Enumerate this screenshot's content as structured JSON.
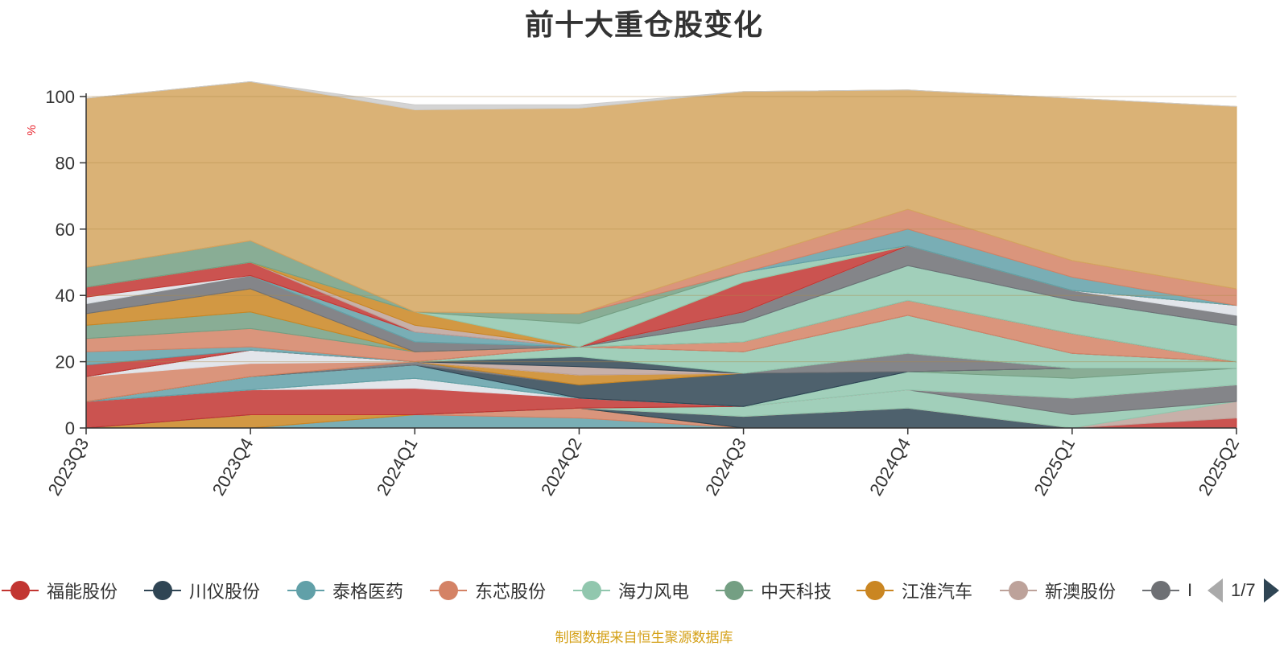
{
  "title": "前十大重仓股变化",
  "footer": "制图数据来自恒生聚源数据库",
  "pager": {
    "text": "1/7"
  },
  "legend": [
    {
      "name": "福能股份",
      "color": "#c23531"
    },
    {
      "name": "川仪股份",
      "color": "#2f4554"
    },
    {
      "name": "泰格医药",
      "color": "#61a0a8"
    },
    {
      "name": "东芯股份",
      "color": "#d48265"
    },
    {
      "name": "海力风电",
      "color": "#91c7ae"
    },
    {
      "name": "中天科技",
      "color": "#749f83"
    },
    {
      "name": "江淮汽车",
      "color": "#ca8622"
    },
    {
      "name": "新澳股份",
      "color": "#bda29a"
    },
    {
      "name": "I",
      "color": "#6e7074"
    }
  ],
  "chart_data": {
    "type": "area",
    "stacked": true,
    "title": "前十大重仓股变化",
    "ylabel": "%",
    "ylim": [
      0,
      100
    ],
    "yticks": [
      0,
      20,
      40,
      60,
      80,
      100
    ],
    "categories": [
      "2023Q3",
      "2023Q4",
      "2024Q1",
      "2024Q2",
      "2024Q3",
      "2024Q4",
      "2025Q1",
      "2025Q2"
    ],
    "grid": true,
    "series": [
      {
        "color": "#61a0a8",
        "values": [
          0,
          0,
          4,
          3,
          0,
          0,
          0,
          0
        ]
      },
      {
        "color": "#d48265",
        "values": [
          0,
          0,
          0,
          3,
          0,
          0,
          0,
          0
        ]
      },
      {
        "color": "#ca8622",
        "values": [
          0,
          4,
          0,
          0,
          0,
          0,
          0,
          0
        ]
      },
      {
        "color": "#2f4554",
        "values": [
          0,
          0,
          0,
          0,
          3.5,
          6,
          0,
          0
        ]
      },
      {
        "color": "#c23531",
        "values": [
          0,
          0,
          0,
          0,
          0,
          0,
          0,
          3
        ]
      },
      {
        "color": "#bda29a",
        "values": [
          0,
          0,
          0,
          0,
          0,
          0,
          0,
          5
        ]
      },
      {
        "color": "#91c7ae",
        "values": [
          0,
          0,
          0,
          0,
          3,
          5.5,
          4,
          0
        ]
      },
      {
        "color": "#6e7074",
        "values": [
          0,
          0,
          0,
          0,
          0,
          0,
          5,
          5
        ]
      },
      {
        "color": "#c23531",
        "values": [
          8,
          7.5,
          8,
          3,
          0,
          0,
          0,
          0
        ]
      },
      {
        "color": "#dde1e6",
        "values": [
          0,
          0,
          3,
          0,
          0,
          0,
          0,
          0
        ]
      },
      {
        "color": "#91c7ae",
        "values": [
          0,
          0,
          0,
          0,
          0,
          5.5,
          6,
          5
        ]
      },
      {
        "color": "#749f83",
        "values": [
          0,
          0,
          0,
          0,
          0,
          0,
          3,
          0
        ]
      },
      {
        "color": "#61a0a8",
        "values": [
          0,
          4,
          4,
          0,
          0,
          0,
          0,
          0
        ]
      },
      {
        "color": "#2f4554",
        "values": [
          0,
          0,
          0,
          4,
          10,
          0,
          0,
          0
        ]
      },
      {
        "color": "#6e7074",
        "values": [
          0,
          0,
          1,
          0,
          0,
          5.5,
          0,
          0
        ]
      },
      {
        "color": "#ca8622",
        "values": [
          0,
          0,
          0,
          3,
          0,
          0,
          0,
          0
        ]
      },
      {
        "color": "#d48265",
        "values": [
          7.5,
          4,
          0,
          0,
          0,
          0,
          0,
          0
        ]
      },
      {
        "color": "#dde1e6",
        "values": [
          0,
          4,
          0,
          0,
          0,
          0,
          0,
          0
        ]
      },
      {
        "color": "#bda29a",
        "values": [
          0,
          0,
          0,
          2.5,
          0,
          0,
          0,
          0
        ]
      },
      {
        "color": "#2f4554",
        "values": [
          0,
          0,
          0,
          3,
          0,
          0,
          0,
          0
        ]
      },
      {
        "color": "#91c7ae",
        "values": [
          0,
          0,
          0,
          3,
          6.5,
          11.5,
          4.5,
          2
        ]
      },
      {
        "color": "#c23531",
        "values": [
          3.5,
          0,
          0,
          0,
          0,
          0,
          0,
          0
        ]
      },
      {
        "color": "#61a0a8",
        "values": [
          4,
          1,
          0,
          0,
          0,
          0,
          0,
          0
        ]
      },
      {
        "color": "#d48265",
        "values": [
          4,
          5.5,
          3,
          0,
          3,
          4.5,
          6,
          0
        ]
      },
      {
        "color": "#749f83",
        "values": [
          4,
          5,
          0,
          0,
          0,
          0,
          0,
          0
        ]
      },
      {
        "color": "#ca8622",
        "values": [
          3.5,
          7,
          0,
          0,
          0,
          0,
          0,
          0
        ]
      },
      {
        "color": "#6e7074",
        "values": [
          3,
          4,
          3,
          0,
          0,
          0,
          0,
          0
        ]
      },
      {
        "color": "#91c7ae",
        "values": [
          0,
          0,
          0,
          0,
          6,
          10.5,
          10,
          11
        ]
      },
      {
        "color": "#61a0a8",
        "values": [
          0,
          0,
          3,
          0,
          0,
          0,
          0,
          0
        ]
      },
      {
        "color": "#6e7074",
        "values": [
          0,
          0,
          0,
          0,
          3,
          6,
          3,
          3
        ]
      },
      {
        "color": "#dde1e6",
        "values": [
          2,
          0,
          0,
          0,
          0,
          0,
          0,
          3
        ]
      },
      {
        "color": "#c23531",
        "values": [
          3,
          4,
          0,
          0,
          9,
          0,
          0,
          0
        ]
      },
      {
        "color": "#bda29a",
        "values": [
          0,
          0,
          2,
          0,
          0,
          0,
          0,
          0
        ]
      },
      {
        "color": "#ca8622",
        "values": [
          0,
          0,
          4,
          0,
          0,
          0,
          0,
          0
        ]
      },
      {
        "color": "#91c7ae",
        "values": [
          0,
          0,
          0,
          7,
          3,
          0,
          0,
          0
        ]
      },
      {
        "color": "#749f83",
        "values": [
          6,
          6.5,
          0,
          3,
          0,
          0,
          0,
          0
        ]
      },
      {
        "color": "#61a0a8",
        "values": [
          0,
          0,
          0,
          0,
          0,
          5,
          4,
          0
        ]
      },
      {
        "color": "#d48265",
        "values": [
          0,
          0,
          0,
          0,
          3.5,
          6,
          5,
          5
        ]
      },
      {
        "color": "#d4a55e",
        "values": [
          51,
          48,
          61,
          62,
          51,
          36,
          49,
          55
        ]
      },
      {
        "color": "#cccccc",
        "values": [
          0,
          0,
          1.5,
          1,
          0,
          0,
          0,
          0
        ]
      }
    ]
  }
}
